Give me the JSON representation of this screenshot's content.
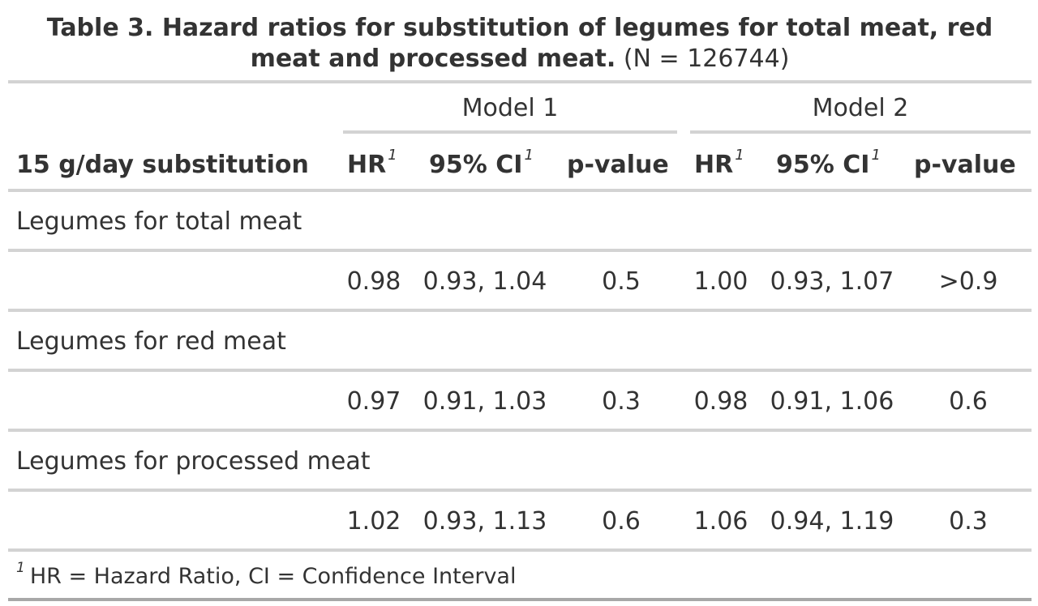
{
  "title": {
    "bold": "Table 3. Hazard ratios for substitution of legumes for total meat, red meat and processed meat.",
    "normal": "(N = 126744)"
  },
  "spanners": [
    "Model 1",
    "Model 2"
  ],
  "columns": {
    "stub": "15 g/day substitution",
    "hr": "HR",
    "ci": "95% CI",
    "p": "p-value",
    "footnote_mark": "1"
  },
  "groups": [
    {
      "label": "Legumes for total meat",
      "row": {
        "m1_hr": "0.98",
        "m1_ci": "0.93, 1.04",
        "m1_p": "0.5",
        "m2_hr": "1.00",
        "m2_ci": "0.93, 1.07",
        "m2_p": ">0.9"
      }
    },
    {
      "label": "Legumes for red meat",
      "row": {
        "m1_hr": "0.97",
        "m1_ci": "0.91, 1.03",
        "m1_p": "0.3",
        "m2_hr": "0.98",
        "m2_ci": "0.91, 1.06",
        "m2_p": "0.6"
      }
    },
    {
      "label": "Legumes for processed meat",
      "row": {
        "m1_hr": "1.02",
        "m1_ci": "0.93, 1.13",
        "m1_p": "0.6",
        "m2_hr": "1.06",
        "m2_ci": "0.94, 1.19",
        "m2_p": "0.3"
      }
    }
  ],
  "footnote": {
    "mark": "1",
    "text": "HR = Hazard Ratio, CI = Confidence Interval"
  }
}
